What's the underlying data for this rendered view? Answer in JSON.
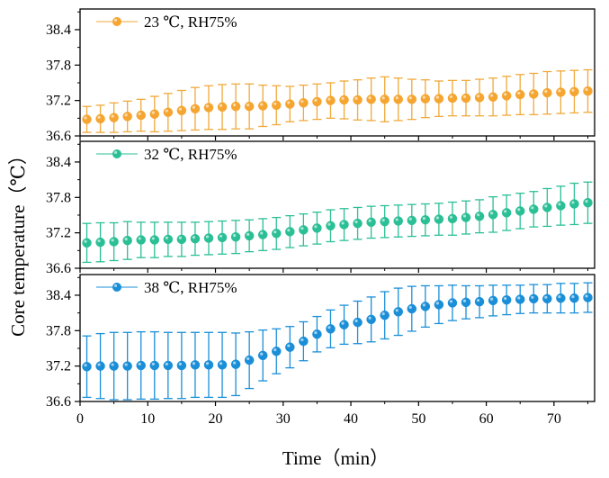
{
  "chart_data": {
    "type": "scatter",
    "xlabel": "Time（min）",
    "ylabel": "Core temperature（℃）",
    "xlim": [
      0,
      76
    ],
    "xticks": [
      0,
      10,
      20,
      30,
      40,
      50,
      60,
      70
    ],
    "ylim": [
      36.6,
      38.75
    ],
    "yticks": [
      36.6,
      37.2,
      37.8,
      38.4
    ],
    "x": [
      1,
      3,
      5,
      7,
      9,
      11,
      13,
      15,
      17,
      19,
      21,
      23,
      25,
      27,
      29,
      31,
      33,
      35,
      37,
      39,
      41,
      43,
      45,
      47,
      49,
      51,
      53,
      55,
      57,
      59,
      61,
      63,
      65,
      67,
      69,
      71,
      73,
      75
    ],
    "panels": [
      {
        "legend": "23 ℃, RH75%",
        "color": "#f5a530",
        "errcolor": "#f0a93a",
        "mean": [
          36.88,
          36.89,
          36.91,
          36.93,
          36.95,
          36.97,
          37.0,
          37.03,
          37.06,
          37.08,
          37.09,
          37.1,
          37.1,
          37.11,
          37.12,
          37.14,
          37.16,
          37.18,
          37.2,
          37.21,
          37.21,
          37.22,
          37.22,
          37.22,
          37.22,
          37.23,
          37.23,
          37.24,
          37.24,
          37.25,
          37.26,
          37.28,
          37.3,
          37.31,
          37.33,
          37.34,
          37.35,
          37.36
        ],
        "err": [
          0.22,
          0.23,
          0.25,
          0.26,
          0.27,
          0.3,
          0.32,
          0.34,
          0.36,
          0.37,
          0.38,
          0.38,
          0.38,
          0.35,
          0.33,
          0.3,
          0.3,
          0.3,
          0.3,
          0.32,
          0.34,
          0.36,
          0.38,
          0.36,
          0.34,
          0.32,
          0.3,
          0.3,
          0.3,
          0.31,
          0.32,
          0.33,
          0.34,
          0.35,
          0.36,
          0.36,
          0.36,
          0.36
        ]
      },
      {
        "legend": "32 ℃, RH75%",
        "color": "#2bbf96",
        "errcolor": "#2bbf96",
        "mean": [
          37.03,
          37.04,
          37.05,
          37.07,
          37.08,
          37.08,
          37.09,
          37.09,
          37.1,
          37.11,
          37.12,
          37.13,
          37.15,
          37.17,
          37.19,
          37.22,
          37.25,
          37.28,
          37.32,
          37.34,
          37.36,
          37.38,
          37.39,
          37.4,
          37.41,
          37.42,
          37.43,
          37.44,
          37.46,
          37.48,
          37.51,
          37.54,
          37.57,
          37.6,
          37.63,
          37.66,
          37.69,
          37.71
        ],
        "err": [
          0.33,
          0.33,
          0.32,
          0.32,
          0.3,
          0.3,
          0.29,
          0.29,
          0.28,
          0.28,
          0.28,
          0.28,
          0.27,
          0.27,
          0.27,
          0.27,
          0.27,
          0.27,
          0.27,
          0.27,
          0.27,
          0.27,
          0.27,
          0.27,
          0.27,
          0.27,
          0.27,
          0.28,
          0.28,
          0.28,
          0.3,
          0.3,
          0.3,
          0.3,
          0.32,
          0.33,
          0.35,
          0.35
        ]
      },
      {
        "legend": "38 ℃, RH75%",
        "color": "#1a8fd8",
        "errcolor": "#1a8fd8",
        "mean": [
          37.19,
          37.2,
          37.2,
          37.2,
          37.21,
          37.21,
          37.21,
          37.21,
          37.22,
          37.22,
          37.22,
          37.23,
          37.3,
          37.38,
          37.45,
          37.52,
          37.62,
          37.74,
          37.83,
          37.9,
          37.94,
          37.99,
          38.06,
          38.12,
          38.17,
          38.21,
          38.24,
          38.27,
          38.28,
          38.29,
          38.31,
          38.32,
          38.33,
          38.34,
          38.34,
          38.35,
          38.35,
          38.36
        ],
        "err": [
          0.52,
          0.55,
          0.57,
          0.57,
          0.57,
          0.57,
          0.56,
          0.56,
          0.55,
          0.55,
          0.55,
          0.53,
          0.48,
          0.43,
          0.38,
          0.35,
          0.33,
          0.3,
          0.32,
          0.33,
          0.36,
          0.38,
          0.4,
          0.4,
          0.38,
          0.35,
          0.32,
          0.3,
          0.28,
          0.27,
          0.26,
          0.25,
          0.24,
          0.24,
          0.24,
          0.25,
          0.25,
          0.25
        ]
      }
    ]
  }
}
